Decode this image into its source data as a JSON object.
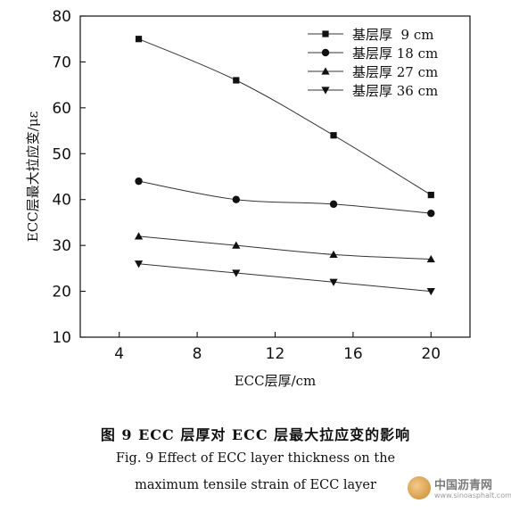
{
  "chart_data": {
    "type": "line",
    "xlabel": "ECC层厚/cm",
    "ylabel": "ECC层最大拉应变/με",
    "xlim": [
      2,
      22
    ],
    "ylim": [
      10,
      80
    ],
    "xticks": [
      4,
      8,
      12,
      16,
      20
    ],
    "yticks": [
      10,
      20,
      30,
      40,
      50,
      60,
      70,
      80
    ],
    "grid": false,
    "legend_position": "top-right",
    "x": [
      5,
      10,
      15,
      20
    ],
    "series": [
      {
        "name": "基层厚  9 cm",
        "marker": "square",
        "values": [
          75,
          66,
          54,
          41
        ]
      },
      {
        "name": "基层厚 18 cm",
        "marker": "circle",
        "values": [
          44,
          40,
          39,
          37
        ]
      },
      {
        "name": "基层厚 27 cm",
        "marker": "triangle-up",
        "values": [
          32,
          30,
          28,
          27
        ]
      },
      {
        "name": "基层厚 36 cm",
        "marker": "triangle-down",
        "values": [
          26,
          24,
          22,
          20
        ]
      }
    ]
  },
  "caption": {
    "chinese": "图 9    ECC 层厚对 ECC 层最大拉应变的影响",
    "english_line1": "Fig. 9    Effect of ECC layer thickness on the",
    "english_line2": "maximum tensile strain of ECC layer"
  },
  "watermark": {
    "name": "中国沥青网",
    "url": "www.sinoasphalt.com"
  }
}
